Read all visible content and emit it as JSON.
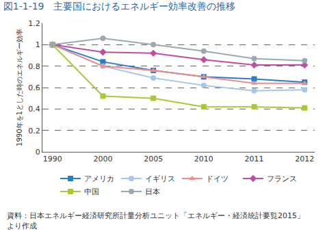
{
  "chart_data": {
    "type": "line",
    "title": "図1-1-19　主要国におけるエネルギー効率改善の推移",
    "y_label": "1990年を1とした時のエネルギー効率",
    "annotations": [
      "資料：日本エネルギー経済研究所計量分析ユニット「エネルギー・経済統計要覧2015」より作成"
    ],
    "categories": [
      "1990",
      "2000",
      "2005",
      "2010",
      "2011",
      "2012"
    ],
    "series": [
      {
        "name": "アメリカ",
        "color": "#2a7cc4",
        "marker": "square",
        "values": [
          1,
          0.84,
          0.76,
          0.7,
          0.68,
          0.65
        ]
      },
      {
        "name": "イギリス",
        "color": "#a4c6e8",
        "marker": "circle",
        "values": [
          1,
          0.8,
          0.69,
          0.62,
          0.57,
          0.58
        ]
      },
      {
        "name": "ドイツ",
        "color": "#f08c8c",
        "marker": "triangle-up",
        "values": [
          1,
          0.8,
          0.76,
          0.7,
          0.64,
          0.64
        ]
      },
      {
        "name": "フランス",
        "color": "#c04ca4",
        "marker": "diamond",
        "values": [
          1,
          0.93,
          0.92,
          0.86,
          0.81,
          0.81
        ]
      },
      {
        "name": "中国",
        "color": "#a8c834",
        "marker": "square",
        "values": [
          1,
          0.52,
          0.5,
          0.42,
          0.42,
          0.41
        ]
      },
      {
        "name": "日本",
        "color": "#9aa8b0",
        "marker": "circle",
        "values": [
          1,
          1.06,
          1.0,
          0.94,
          0.87,
          0.85
        ]
      }
    ],
    "ylim": [
      0,
      1.2
    ],
    "yticks": [
      0,
      0.2,
      0.4,
      0.6,
      0.8,
      1,
      1.2
    ],
    "grid": true,
    "legend": "bottom"
  }
}
